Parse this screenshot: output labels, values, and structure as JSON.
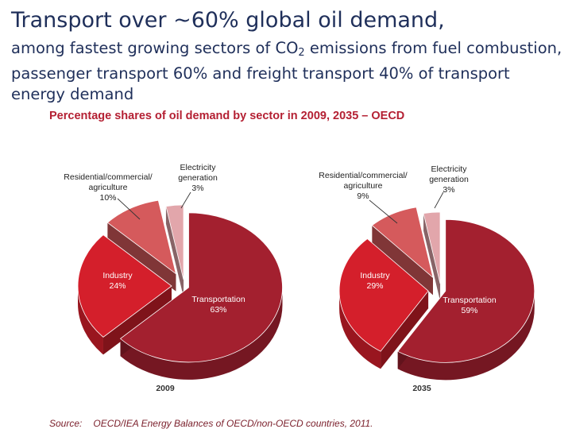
{
  "slide": {
    "title": "Transport over ~60% global oil demand,",
    "subtitle_pre": "among fastest growing sectors of CO",
    "subtitle_sub": "2",
    "subtitle_post": " emissions from fuel combustion, passenger transport 60% and freight transport 40% of transport energy demand",
    "source_label": "Source:",
    "source_text": "OECD/IEA Energy Balances of OECD/non-OECD countries, 2011."
  },
  "chart_data": {
    "type": "pie",
    "title": "Percentage shares of oil demand by sector in 2009, 2035 – OECD",
    "colors": {
      "transportation": "#a3202f",
      "industry": "#d41f2b",
      "residential": "#d55a5c",
      "electricity": "#e2a6ab"
    },
    "charts": [
      {
        "name": "2009",
        "slices": [
          {
            "label_lines": [
              "Transportation"
            ],
            "value_label": "63%",
            "value": 63
          },
          {
            "label_lines": [
              "Industry"
            ],
            "value_label": "24%",
            "value": 24
          },
          {
            "label_lines": [
              "Residential/commercial/",
              "agriculture"
            ],
            "value_label": "10%",
            "value": 10
          },
          {
            "label_lines": [
              "Electricity",
              "generation"
            ],
            "value_label": "3%",
            "value": 3
          }
        ]
      },
      {
        "name": "2035",
        "slices": [
          {
            "label_lines": [
              "Transportation"
            ],
            "value_label": "59%",
            "value": 59
          },
          {
            "label_lines": [
              "Industry"
            ],
            "value_label": "29%",
            "value": 29
          },
          {
            "label_lines": [
              "Residential/commercial/",
              "agriculture"
            ],
            "value_label": "9%",
            "value": 9
          },
          {
            "label_lines": [
              "Electricity",
              "generation"
            ],
            "value_label": "3%",
            "value": 3
          }
        ]
      }
    ]
  }
}
